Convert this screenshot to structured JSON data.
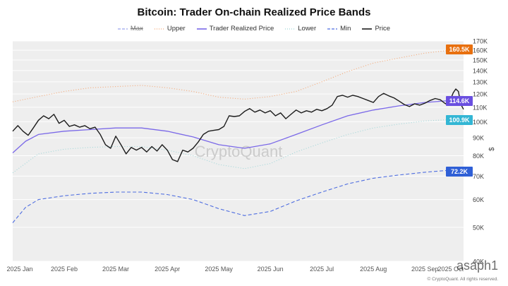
{
  "title": "Bitcoin: Trader On-chain Realized Price Bands",
  "legend": [
    {
      "key": "max",
      "label": "Max",
      "style": "dash",
      "color": "#9aa4ee",
      "strike": true
    },
    {
      "key": "upper",
      "label": "Upper",
      "style": "dot",
      "color": "#f5a673",
      "strike": false
    },
    {
      "key": "trp",
      "label": "Trader Realized Price",
      "style": "solid",
      "color": "#7a68e8",
      "strike": false
    },
    {
      "key": "lower",
      "label": "Lower",
      "style": "dot",
      "color": "#9fd6d8",
      "strike": false
    },
    {
      "key": "min",
      "label": "Min",
      "style": "dash",
      "color": "#4f6ee0",
      "strike": false
    },
    {
      "key": "price",
      "label": "Price",
      "style": "solid",
      "color": "#1c1c1c",
      "strike": false
    }
  ],
  "watermark": "CryptoQuant",
  "footer": "© CryptoQuant. All rights reserved.",
  "author_mark": "asaph1",
  "colors": {
    "plot_bg": "#eeeeee",
    "upper": "#f5a673",
    "trp": "#7a68e8",
    "lower": "#9fd6d8",
    "min": "#4f6ee0",
    "price": "#1c1c1c"
  },
  "chart_data": {
    "type": "line",
    "scale": "log",
    "xlim": [
      0,
      8.75
    ],
    "ylim": [
      40000,
      170000
    ],
    "x_ticks": [
      {
        "value": 0,
        "label": "2025 Jan"
      },
      {
        "value": 1,
        "label": "2025 Feb"
      },
      {
        "value": 2,
        "label": "2025 Mar"
      },
      {
        "value": 3,
        "label": "2025 Apr"
      },
      {
        "value": 4,
        "label": "2025 May"
      },
      {
        "value": 5,
        "label": "2025 Jun"
      },
      {
        "value": 6,
        "label": "2025 Jul"
      },
      {
        "value": 7,
        "label": "2025 Aug"
      },
      {
        "value": 8,
        "label": "2025 Sep"
      },
      {
        "value": 8.5,
        "label": "2025 Oct"
      }
    ],
    "y_ticks": [
      {
        "value": 40000,
        "label": "40K"
      },
      {
        "value": 50000,
        "label": "50K"
      },
      {
        "value": 60000,
        "label": "60K"
      },
      {
        "value": 70000,
        "label": "70K"
      },
      {
        "value": 80000,
        "label": "80K"
      },
      {
        "value": 90000,
        "label": "90K"
      },
      {
        "value": 100000,
        "label": "100K"
      },
      {
        "value": 110000,
        "label": "110K"
      },
      {
        "value": 120000,
        "label": "120K"
      },
      {
        "value": 130000,
        "label": "130K"
      },
      {
        "value": 140000,
        "label": "140K"
      },
      {
        "value": 150000,
        "label": "150K"
      },
      {
        "value": 160000,
        "label": "160K"
      },
      {
        "value": 170000,
        "label": "170K"
      }
    ],
    "ylabel": "$",
    "series": [
      {
        "key": "upper",
        "name": "Upper",
        "color": "#f5a673",
        "style": "dot",
        "points": [
          [
            0,
            114000
          ],
          [
            0.5,
            118000
          ],
          [
            1,
            122000
          ],
          [
            1.5,
            125000
          ],
          [
            2,
            126000
          ],
          [
            2.5,
            127000
          ],
          [
            3,
            125000
          ],
          [
            3.5,
            122000
          ],
          [
            4,
            117500
          ],
          [
            4.5,
            116000
          ],
          [
            5,
            118000
          ],
          [
            5.5,
            122000
          ],
          [
            6,
            130000
          ],
          [
            6.5,
            139000
          ],
          [
            7,
            147000
          ],
          [
            7.5,
            152000
          ],
          [
            8,
            157000
          ],
          [
            8.5,
            160000
          ],
          [
            8.75,
            160500
          ]
        ]
      },
      {
        "key": "trp",
        "name": "Trader Realized Price",
        "color": "#7a68e8",
        "style": "solid",
        "points": [
          [
            0,
            81500
          ],
          [
            0.25,
            88000
          ],
          [
            0.5,
            92000
          ],
          [
            1,
            94000
          ],
          [
            1.5,
            95000
          ],
          [
            2,
            96000
          ],
          [
            2.5,
            96000
          ],
          [
            3,
            94000
          ],
          [
            3.5,
            90500
          ],
          [
            4,
            86000
          ],
          [
            4.5,
            84000
          ],
          [
            5,
            86500
          ],
          [
            5.5,
            92000
          ],
          [
            6,
            98000
          ],
          [
            6.5,
            104000
          ],
          [
            7,
            108000
          ],
          [
            7.5,
            111000
          ],
          [
            8,
            113500
          ],
          [
            8.5,
            115000
          ],
          [
            8.75,
            114600
          ]
        ]
      },
      {
        "key": "lower",
        "name": "Lower",
        "color": "#9fd6d8",
        "style": "dot",
        "points": [
          [
            0,
            71500
          ],
          [
            0.5,
            81000
          ],
          [
            1,
            83500
          ],
          [
            1.5,
            84500
          ],
          [
            2,
            85000
          ],
          [
            2.5,
            85000
          ],
          [
            3,
            83000
          ],
          [
            3.5,
            80000
          ],
          [
            4,
            75500
          ],
          [
            4.5,
            73500
          ],
          [
            5,
            76000
          ],
          [
            5.5,
            82000
          ],
          [
            6,
            87000
          ],
          [
            6.5,
            92000
          ],
          [
            7,
            96000
          ],
          [
            7.5,
            98500
          ],
          [
            8,
            100500
          ],
          [
            8.5,
            101500
          ],
          [
            8.75,
            100900
          ]
        ]
      },
      {
        "key": "min",
        "name": "Min",
        "color": "#4f6ee0",
        "style": "dash",
        "points": [
          [
            0,
            51500
          ],
          [
            0.25,
            57000
          ],
          [
            0.5,
            60000
          ],
          [
            1,
            61500
          ],
          [
            1.5,
            62500
          ],
          [
            2,
            63000
          ],
          [
            2.5,
            63000
          ],
          [
            3,
            62000
          ],
          [
            3.5,
            60000
          ],
          [
            4,
            56500
          ],
          [
            4.5,
            54000
          ],
          [
            5,
            55500
          ],
          [
            5.5,
            59500
          ],
          [
            6,
            63000
          ],
          [
            6.5,
            66500
          ],
          [
            7,
            69000
          ],
          [
            7.5,
            70500
          ],
          [
            8,
            71800
          ],
          [
            8.5,
            72800
          ],
          [
            8.75,
            72200
          ]
        ]
      },
      {
        "key": "price",
        "name": "Price",
        "color": "#1c1c1c",
        "style": "solid",
        "points": [
          [
            0,
            94000
          ],
          [
            0.1,
            97500
          ],
          [
            0.2,
            94000
          ],
          [
            0.3,
            91500
          ],
          [
            0.4,
            96000
          ],
          [
            0.5,
            101000
          ],
          [
            0.6,
            104000
          ],
          [
            0.7,
            102000
          ],
          [
            0.8,
            105000
          ],
          [
            0.9,
            99000
          ],
          [
            1,
            101000
          ],
          [
            1.1,
            97000
          ],
          [
            1.2,
            98000
          ],
          [
            1.3,
            96500
          ],
          [
            1.4,
            97500
          ],
          [
            1.5,
            95500
          ],
          [
            1.6,
            96500
          ],
          [
            1.7,
            92000
          ],
          [
            1.8,
            86000
          ],
          [
            1.9,
            84000
          ],
          [
            2,
            91000
          ],
          [
            2.1,
            86000
          ],
          [
            2.2,
            81000
          ],
          [
            2.3,
            84500
          ],
          [
            2.4,
            83000
          ],
          [
            2.5,
            84500
          ],
          [
            2.6,
            82000
          ],
          [
            2.7,
            85000
          ],
          [
            2.8,
            82500
          ],
          [
            2.9,
            86000
          ],
          [
            3,
            83000
          ],
          [
            3.1,
            78000
          ],
          [
            3.2,
            77000
          ],
          [
            3.3,
            83000
          ],
          [
            3.4,
            82000
          ],
          [
            3.5,
            84000
          ],
          [
            3.6,
            87500
          ],
          [
            3.7,
            92000
          ],
          [
            3.8,
            94000
          ],
          [
            3.9,
            94500
          ],
          [
            4,
            95000
          ],
          [
            4.1,
            97000
          ],
          [
            4.2,
            104000
          ],
          [
            4.3,
            103500
          ],
          [
            4.4,
            104000
          ],
          [
            4.5,
            107000
          ],
          [
            4.6,
            109000
          ],
          [
            4.7,
            106500
          ],
          [
            4.8,
            108000
          ],
          [
            4.9,
            106000
          ],
          [
            5,
            107500
          ],
          [
            5.1,
            104000
          ],
          [
            5.2,
            106000
          ],
          [
            5.3,
            102000
          ],
          [
            5.4,
            105000
          ],
          [
            5.5,
            108000
          ],
          [
            5.6,
            106000
          ],
          [
            5.7,
            107500
          ],
          [
            5.8,
            106500
          ],
          [
            5.9,
            108500
          ],
          [
            6,
            107500
          ],
          [
            6.1,
            109000
          ],
          [
            6.2,
            111500
          ],
          [
            6.3,
            118000
          ],
          [
            6.4,
            119000
          ],
          [
            6.5,
            117500
          ],
          [
            6.6,
            119000
          ],
          [
            6.7,
            118000
          ],
          [
            6.8,
            116500
          ],
          [
            6.9,
            115000
          ],
          [
            7,
            113500
          ],
          [
            7.1,
            118000
          ],
          [
            7.2,
            120500
          ],
          [
            7.3,
            118500
          ],
          [
            7.4,
            117000
          ],
          [
            7.5,
            114500
          ],
          [
            7.6,
            112000
          ],
          [
            7.7,
            110500
          ],
          [
            7.8,
            112500
          ],
          [
            7.9,
            111500
          ],
          [
            8,
            113000
          ],
          [
            8.1,
            115000
          ],
          [
            8.2,
            116500
          ],
          [
            8.3,
            115500
          ],
          [
            8.4,
            112500
          ],
          [
            8.5,
            116000
          ],
          [
            8.55,
            121000
          ],
          [
            8.6,
            124000
          ],
          [
            8.65,
            122000
          ],
          [
            8.7,
            112000
          ],
          [
            8.75,
            108500
          ]
        ]
      }
    ],
    "badges": [
      {
        "label": "160.5K",
        "value": 160500,
        "color": "#e8700f"
      },
      {
        "label": "114.6K",
        "value": 114600,
        "color": "#6a4fe0"
      },
      {
        "label": "100.9K",
        "value": 100900,
        "color": "#33b6d4"
      },
      {
        "label": "72.2K",
        "value": 72200,
        "color": "#2f5fd6"
      }
    ]
  }
}
